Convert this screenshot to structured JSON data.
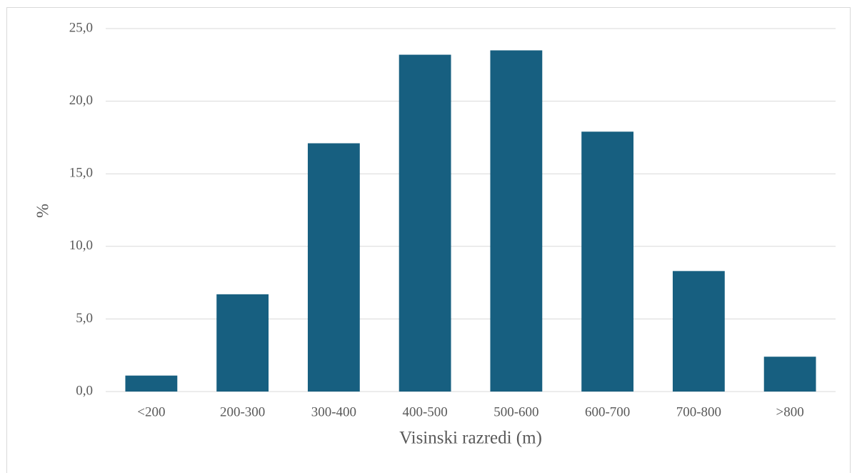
{
  "chart_data": {
    "type": "bar",
    "x_label": "Visinski razredi (m)",
    "y_label": "%",
    "categories": [
      "<200",
      "200-300",
      "300-400",
      "400-500",
      "500-600",
      "600-700",
      "700-800",
      ">800"
    ],
    "values": [
      1.1,
      6.7,
      17.1,
      23.2,
      23.5,
      17.9,
      8.3,
      2.4
    ],
    "color": "#175f80",
    "ylim": [
      0,
      25
    ],
    "yticks": [
      {
        "value": 0,
        "label": "0,0"
      },
      {
        "value": 5,
        "label": "5,0"
      },
      {
        "value": 10,
        "label": "10,0"
      },
      {
        "value": 15,
        "label": "15,0"
      },
      {
        "value": 20,
        "label": "20,0"
      },
      {
        "value": 25,
        "label": "25,0"
      }
    ],
    "grid": true
  }
}
